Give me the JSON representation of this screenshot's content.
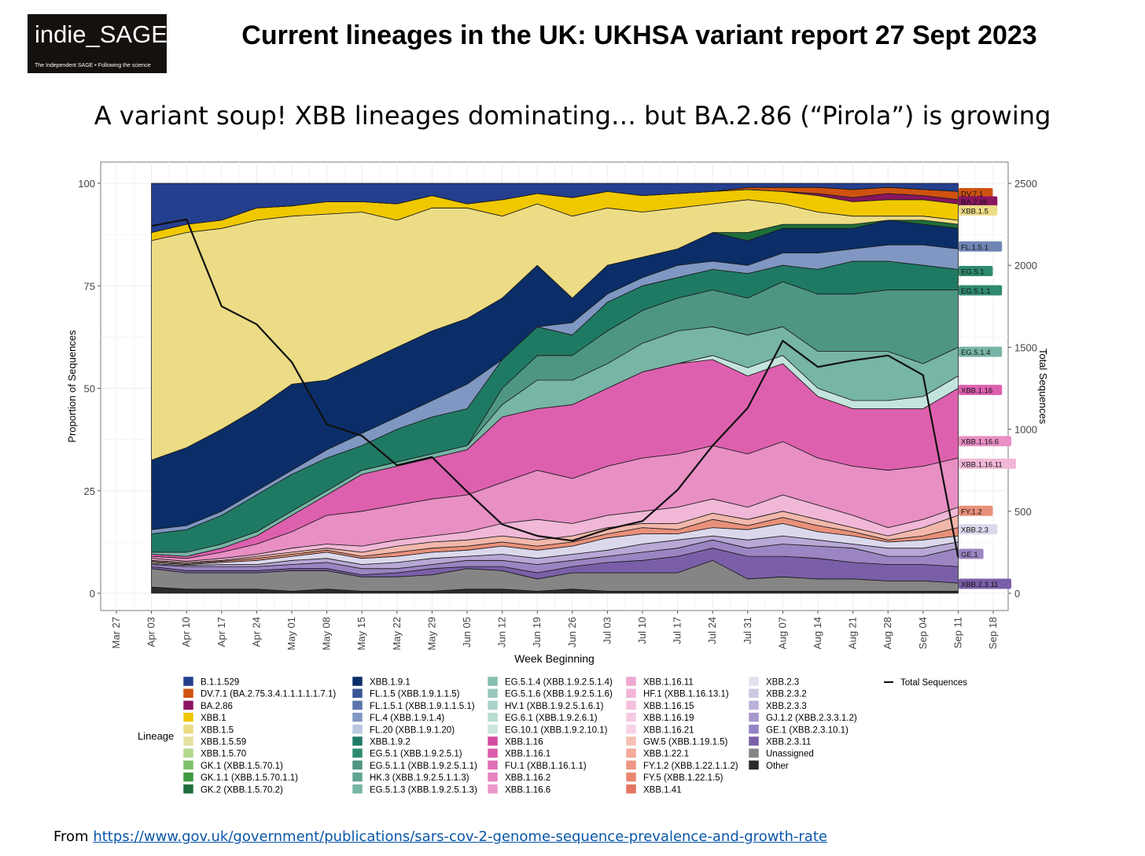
{
  "header": {
    "logo_text": "indie_SAGE",
    "logo_tagline": "The Independent SAGE • Following the science",
    "title": "Current lineages in the UK: UKHSA variant report 27 Sept 2023",
    "subtitle": "A variant soup! XBB lineages dominating… but BA.2.86 (“Pirola”) is growing"
  },
  "footer": {
    "source_prefix": "From ",
    "source_url": "https://www.gov.uk/government/publications/sars-cov-2-genome-sequence-prevalence-and-growth-rate"
  },
  "chart_data": {
    "type": "area",
    "xlabel": "Week Beginning",
    "ylabel": "Proportion of Sequences",
    "y2label": "Total Sequences",
    "x_ticks": [
      "Mar 27",
      "Apr 03",
      "Apr 10",
      "Apr 17",
      "Apr 24",
      "May 01",
      "May 08",
      "May 15",
      "May 22",
      "May 29",
      "Jun 05",
      "Jun 12",
      "Jun 19",
      "Jun 26",
      "Jul 03",
      "Jul 10",
      "Jul 17",
      "Jul 24",
      "Jul 31",
      "Aug 07",
      "Aug 14",
      "Aug 21",
      "Aug 28",
      "Sep 04",
      "Sep 11",
      "Sep 18"
    ],
    "x": [
      "Apr 03",
      "Apr 10",
      "Apr 17",
      "Apr 24",
      "May 01",
      "May 08",
      "May 15",
      "May 22",
      "May 29",
      "Jun 05",
      "Jun 12",
      "Jun 19",
      "Jun 26",
      "Jul 03",
      "Jul 10",
      "Jul 17",
      "Jul 24",
      "Jul 31",
      "Aug 07",
      "Aug 14",
      "Aug 21",
      "Aug 28",
      "Sep 04",
      "Sep 11"
    ],
    "y_ticks": [
      0,
      25,
      50,
      75,
      100
    ],
    "ylim": [
      0,
      100
    ],
    "y2_ticks": [
      0,
      500,
      1000,
      1500,
      2000,
      2500
    ],
    "y2lim": [
      0,
      2500
    ],
    "grid": true,
    "stack_layers": [
      {
        "color": "#2b2b2b",
        "top": [
          1.5,
          1,
          1,
          1,
          0.5,
          1,
          0.5,
          0.5,
          0.5,
          1,
          1,
          0.5,
          1,
          0.5,
          0.5,
          0.5,
          0.5,
          0.5,
          0.5,
          0.5,
          0.5,
          0.5,
          0.5,
          0.5
        ]
      },
      {
        "color": "#858585",
        "top": [
          6,
          5,
          5,
          5,
          5.5,
          5.5,
          4,
          4,
          4.5,
          6,
          5.5,
          3.5,
          5,
          5,
          5,
          5,
          8,
          3.5,
          4,
          3.5,
          3.5,
          3,
          3,
          2.5
        ]
      },
      {
        "color": "#7a5fa8",
        "top": [
          6.5,
          5.5,
          5.5,
          5.5,
          6,
          6,
          4.5,
          5,
          6,
          6.5,
          6.5,
          5,
          6.5,
          7.5,
          8,
          9,
          11,
          9,
          9,
          8.5,
          7.5,
          7,
          7,
          6.5
        ]
      },
      {
        "color": "#9b85c2",
        "top": [
          7,
          6.5,
          6.5,
          6.5,
          7,
          7.5,
          6,
          6,
          7,
          8,
          8,
          7,
          8,
          9,
          10,
          11,
          13,
          11,
          12,
          11.5,
          11,
          9,
          9,
          11
        ]
      },
      {
        "color": "#b7a8d6",
        "top": [
          7.2,
          6.8,
          7,
          7,
          8,
          8.5,
          7,
          7.5,
          8.5,
          9,
          9.5,
          8.5,
          9.5,
          10.5,
          12,
          13,
          14,
          13,
          14,
          13,
          12,
          11,
          11,
          12.5
        ]
      },
      {
        "color": "#dcd8ec",
        "top": [
          7.5,
          7,
          7.5,
          8,
          9,
          10,
          8.5,
          9,
          10,
          10.5,
          11.5,
          10.5,
          11.5,
          13.5,
          14.5,
          14.5,
          16,
          15.5,
          17,
          15,
          14,
          12.5,
          13,
          14
        ]
      },
      {
        "color": "#e8907a",
        "top": [
          7.8,
          7.2,
          7.8,
          8.5,
          9.5,
          10.5,
          9,
          10,
          11,
          11.5,
          12.5,
          11.5,
          12.5,
          14.5,
          16,
          15.5,
          18,
          16.5,
          18.5,
          16.5,
          15,
          13,
          14,
          16
        ]
      },
      {
        "color": "#f2b7ab",
        "top": [
          8,
          7.5,
          8,
          9,
          10,
          11,
          10,
          11.5,
          12.5,
          13,
          14,
          13,
          14,
          16,
          17,
          17,
          19.5,
          18,
          20,
          18,
          16,
          14,
          16,
          19
        ]
      },
      {
        "color": "#f0b8d6",
        "top": [
          8.5,
          7.8,
          8.5,
          9.5,
          11,
          12,
          11.5,
          13,
          14,
          15,
          17,
          18,
          17,
          19,
          20,
          21,
          23,
          21,
          24,
          21.5,
          19,
          16,
          18,
          21
        ]
      },
      {
        "color": "#e88fc4",
        "top": [
          9,
          8.5,
          10,
          12,
          15,
          19,
          20,
          21.5,
          23,
          24,
          27,
          30,
          28,
          31,
          33,
          34,
          36,
          34,
          37,
          33,
          31,
          30,
          31,
          33
        ]
      },
      {
        "color": "#dd60ae",
        "top": [
          9.5,
          9,
          11,
          14,
          19,
          24,
          29,
          31,
          33,
          35,
          43,
          45,
          46,
          50,
          54,
          56,
          57,
          53,
          56,
          48,
          45,
          45,
          45,
          50
        ]
      },
      {
        "color": "#c3e4dc",
        "top": [
          9.5,
          9,
          11,
          14,
          19,
          24,
          29,
          31,
          33,
          35,
          43,
          45,
          46,
          50,
          54,
          56,
          58,
          55,
          58,
          50,
          47,
          47,
          48,
          53
        ]
      },
      {
        "color": "#77b5a6",
        "top": [
          10,
          10,
          12,
          15,
          20,
          25,
          30,
          32,
          34,
          36,
          46,
          52,
          52,
          56,
          61,
          64,
          65,
          63,
          65,
          59,
          59,
          59,
          56,
          60
        ]
      },
      {
        "color": "#4e9683",
        "top": [
          10,
          10,
          12,
          15,
          20,
          25,
          30,
          32,
          34,
          36,
          50,
          58,
          58,
          64,
          69,
          72,
          74,
          72,
          76,
          73,
          73,
          74,
          74,
          74
        ]
      },
      {
        "color": "#1f7a63",
        "top": [
          14.5,
          15.5,
          19,
          24,
          29,
          33,
          36,
          40,
          43,
          45,
          57,
          65,
          63,
          71,
          75,
          77,
          79,
          78,
          80,
          79,
          81,
          81,
          80,
          79
        ]
      },
      {
        "color": "#7f97c2",
        "top": [
          15.5,
          16.5,
          20,
          25,
          30,
          35,
          39,
          43,
          47,
          51,
          57,
          65,
          66,
          73,
          77,
          80,
          81,
          80,
          83,
          83,
          84,
          85,
          85,
          84
        ]
      },
      {
        "color": "#0b2e68",
        "top": [
          32.5,
          35.5,
          40,
          45,
          51,
          52,
          56,
          60,
          64,
          67,
          72,
          80,
          72,
          80,
          82,
          84,
          88,
          86,
          89,
          89,
          89,
          91,
          90,
          89
        ]
      },
      {
        "color": "#1e6e3a",
        "top": [
          32.5,
          35.5,
          40,
          45,
          51,
          52,
          56,
          60,
          64,
          67,
          72,
          80,
          72,
          80,
          82,
          84,
          88,
          88,
          90,
          90,
          90,
          91,
          91,
          90
        ]
      },
      {
        "color": "#ecdc85",
        "top": [
          86,
          88,
          89,
          91,
          92,
          92.5,
          93,
          91,
          94,
          94,
          92,
          95,
          92,
          94,
          93,
          94,
          95,
          96,
          95,
          93,
          92,
          92,
          92,
          91
        ]
      },
      {
        "color": "#f0c800",
        "top": [
          88,
          90,
          91,
          94,
          94.5,
          95.5,
          95.5,
          95,
          97,
          95,
          96,
          97.5,
          96.5,
          98,
          97,
          97.5,
          98,
          98.5,
          98,
          97,
          95.5,
          96,
          96,
          95
        ]
      },
      {
        "color": "#8a1560",
        "top": [
          88,
          90,
          91,
          94,
          94.5,
          95.5,
          95.5,
          95,
          97,
          95,
          96,
          97.5,
          96.5,
          98,
          97,
          97.5,
          98,
          98.5,
          98,
          97.5,
          96.5,
          97.5,
          97,
          96
        ]
      },
      {
        "color": "#cf5210",
        "top": [
          88,
          90,
          91,
          94,
          94.5,
          95.5,
          95.5,
          95,
          97,
          95,
          96,
          97.5,
          96.5,
          98,
          97,
          97.5,
          98,
          99,
          99,
          99,
          98.5,
          99,
          98.5,
          98
        ]
      },
      {
        "color": "#243f8e",
        "top": [
          100,
          100,
          100,
          100,
          100,
          100,
          100,
          100,
          100,
          100,
          100,
          100,
          100,
          100,
          100,
          100,
          100,
          100,
          100,
          100,
          100,
          100,
          100,
          100
        ]
      }
    ],
    "total_sequences": [
      2240,
      2280,
      1750,
      1640,
      1410,
      1030,
      960,
      780,
      830,
      620,
      420,
      350,
      320,
      390,
      440,
      630,
      900,
      1130,
      1540,
      1380,
      1420,
      1450,
      1330,
      220
    ],
    "end_labels": [
      {
        "text": "DV.7.1",
        "y": 97.5,
        "color": "#cf5210"
      },
      {
        "text": "BA.2.86",
        "y": 95.5,
        "color": "#8a1560"
      },
      {
        "text": "XBB.1.5",
        "y": 93.3,
        "color": "#ecdc85"
      },
      {
        "text": "FL.1.5.1",
        "y": 84.5,
        "color": "#6f86b4"
      },
      {
        "text": "EG.5.1",
        "y": 78.5,
        "color": "#2f8a6f"
      },
      {
        "text": "EG.5.1.1",
        "y": 73.8,
        "color": "#2f8a6f"
      },
      {
        "text": "EG.5.1.4",
        "y": 58.8,
        "color": "#77b5a6"
      },
      {
        "text": "XBB.1.16",
        "y": 49.5,
        "color": "#dd60ae"
      },
      {
        "text": "XBB.1.16.6",
        "y": 37,
        "color": "#e88fc4"
      },
      {
        "text": "XBB.1.16.11",
        "y": 31.5,
        "color": "#f0b8d6"
      },
      {
        "text": "FY.1.2",
        "y": 20,
        "color": "#e8907a"
      },
      {
        "text": "XBB.2.3",
        "y": 15.5,
        "color": "#dcd8ec"
      },
      {
        "text": "GE.1",
        "y": 9.5,
        "color": "#9b85c2"
      },
      {
        "text": "XBB.2.3.11",
        "y": 2.2,
        "color": "#7a5fa8"
      }
    ],
    "legend_title": "Lineage",
    "legend_line_label": "Total Sequences",
    "legend": [
      [
        {
          "label": "B.1.1.529",
          "color": "#243f8e"
        },
        {
          "label": "DV.7.1 (BA.2.75.3.4.1.1.1.1.1.7.1)",
          "color": "#cf5210"
        },
        {
          "label": "BA.2.86",
          "color": "#8a1560"
        },
        {
          "label": "XBB.1",
          "color": "#f0c800"
        },
        {
          "label": "XBB.1.5",
          "color": "#ecdc85"
        },
        {
          "label": "XBB.1.5.59",
          "color": "#e4e0a0"
        },
        {
          "label": "XBB.1.5.70",
          "color": "#b4d98c"
        },
        {
          "label": "GK.1 (XBB.1.5.70.1)",
          "color": "#7cc16a"
        },
        {
          "label": "GK.1.1 (XBB.1.5.70.1.1)",
          "color": "#3d9a40"
        },
        {
          "label": "GK.2 (XBB.1.5.70.2)",
          "color": "#1e6e3a"
        }
      ],
      [
        {
          "label": "XBB.1.9.1",
          "color": "#0b2e68"
        },
        {
          "label": "FL.1.5 (XBB.1.9.1.1.5)",
          "color": "#3a5694"
        },
        {
          "label": "FL.1.5.1 (XBB.1.9.1.1.5.1)",
          "color": "#5a75ac"
        },
        {
          "label": "FL.4 (XBB.1.9.1.4)",
          "color": "#7f97c2"
        },
        {
          "label": "FL.20 (XBB.1.9.1.20)",
          "color": "#b9c8e0"
        },
        {
          "label": "XBB.1.9.2",
          "color": "#1f7a63"
        },
        {
          "label": "EG.5.1 (XBB.1.9.2.5.1)",
          "color": "#2f8a6f"
        },
        {
          "label": "EG.5.1.1 (XBB.1.9.2.5.1.1)",
          "color": "#4e9683"
        },
        {
          "label": "HK.3 (XBB.1.9.2.5.1.1.3)",
          "color": "#62a595"
        },
        {
          "label": "EG.5.1.3 (XBB.1.9.2.5.1.3)",
          "color": "#77b5a6"
        }
      ],
      [
        {
          "label": "EG.5.1.4 (XBB.1.9.2.5.1.4)",
          "color": "#87bfb1"
        },
        {
          "label": "EG.5.1.6 (XBB.1.9.2.5.1.6)",
          "color": "#98c8bc"
        },
        {
          "label": "HV.1 (XBB.1.9.2.5.1.6.1)",
          "color": "#a9d2c8"
        },
        {
          "label": "EG.6.1 (XBB.1.9.2.6.1)",
          "color": "#b9dcd3"
        },
        {
          "label": "EG.10.1 (XBB.1.9.2.10.1)",
          "color": "#c8e5de"
        },
        {
          "label": "XBB.1.16",
          "color": "#d44aa2"
        },
        {
          "label": "XBB.1.16.1",
          "color": "#db5eac"
        },
        {
          "label": "FU.1 (XBB.1.16.1.1)",
          "color": "#e070b6"
        },
        {
          "label": "XBB.1.16.2",
          "color": "#e584c0"
        },
        {
          "label": "XBB.1.16.6",
          "color": "#ea98ca"
        }
      ],
      [
        {
          "label": "XBB.1.16.11",
          "color": "#eea8d2"
        },
        {
          "label": "HF.1 (XBB.1.16.13.1)",
          "color": "#f2b5d9"
        },
        {
          "label": "XBB.1.16.15",
          "color": "#f4c0de"
        },
        {
          "label": "XBB.1.16.19",
          "color": "#f6c9e2"
        },
        {
          "label": "XBB.1.16.21",
          "color": "#f8d2e7"
        },
        {
          "label": "GW.5 (XBB.1.19.1.5)",
          "color": "#f6c0b4"
        },
        {
          "label": "XBB.1.22.1",
          "color": "#f2aa9a"
        },
        {
          "label": "FY.1.2 (XBB.1.22.1.1.2)",
          "color": "#ee9784"
        },
        {
          "label": "FY.5 (XBB.1.22.1.5)",
          "color": "#ea8671"
        },
        {
          "label": "XBB.1.41",
          "color": "#e4755e"
        }
      ],
      [
        {
          "label": "XBB.2.3",
          "color": "#e3e0ef"
        },
        {
          "label": "XBB.2.3.2",
          "color": "#cfc8e4"
        },
        {
          "label": "XBB.2.3.3",
          "color": "#bbb0d9"
        },
        {
          "label": "GJ.1.2 (XBB.2.3.3.1.2)",
          "color": "#a798ce"
        },
        {
          "label": "GE.1 (XBB.2.3.10.1)",
          "color": "#9482c2"
        },
        {
          "label": "XBB.2.3.11",
          "color": "#7a5fa8"
        },
        {
          "label": "Unassigned",
          "color": "#858585"
        },
        {
          "label": "Other",
          "color": "#2b2b2b"
        }
      ]
    ]
  }
}
